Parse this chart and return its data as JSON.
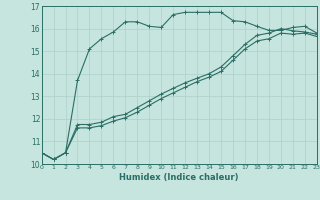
{
  "xlabel": "Humidex (Indice chaleur)",
  "xlim": [
    0,
    23
  ],
  "ylim": [
    10,
    17
  ],
  "yticks": [
    10,
    11,
    12,
    13,
    14,
    15,
    16,
    17
  ],
  "xticks": [
    0,
    1,
    2,
    3,
    4,
    5,
    6,
    7,
    8,
    9,
    10,
    11,
    12,
    13,
    14,
    15,
    16,
    17,
    18,
    19,
    20,
    21,
    22,
    23
  ],
  "line_color": "#2a6e65",
  "bg_color": "#c5e5de",
  "grid_color_major": "#aed0c8",
  "grid_color_minor": "#bdddd6",
  "series": [
    {
      "x": [
        0,
        1,
        2,
        3,
        4,
        5,
        6,
        7,
        8,
        9,
        10,
        11,
        12,
        13,
        14,
        15,
        16,
        17,
        18,
        19,
        20,
        21,
        22,
        23
      ],
      "y": [
        10.5,
        10.2,
        10.5,
        13.7,
        15.1,
        15.55,
        15.85,
        16.3,
        16.3,
        16.1,
        16.05,
        16.62,
        16.72,
        16.72,
        16.72,
        16.72,
        16.35,
        16.3,
        16.1,
        15.92,
        15.92,
        16.05,
        16.1,
        15.8
      ]
    },
    {
      "x": [
        0,
        1,
        2,
        3,
        4,
        5,
        6,
        7,
        8,
        9,
        10,
        11,
        12,
        13,
        14,
        15,
        16,
        17,
        18,
        19,
        20,
        21,
        22,
        23
      ],
      "y": [
        10.5,
        10.2,
        10.5,
        11.75,
        11.75,
        11.85,
        12.1,
        12.2,
        12.5,
        12.8,
        13.1,
        13.35,
        13.6,
        13.8,
        14.0,
        14.3,
        14.8,
        15.3,
        15.7,
        15.8,
        16.0,
        15.9,
        15.85,
        15.75
      ]
    },
    {
      "x": [
        0,
        1,
        2,
        3,
        4,
        5,
        6,
        7,
        8,
        9,
        10,
        11,
        12,
        13,
        14,
        15,
        16,
        17,
        18,
        19,
        20,
        21,
        22,
        23
      ],
      "y": [
        10.5,
        10.2,
        10.5,
        11.6,
        11.6,
        11.7,
        11.9,
        12.05,
        12.3,
        12.6,
        12.9,
        13.15,
        13.4,
        13.65,
        13.85,
        14.1,
        14.6,
        15.1,
        15.45,
        15.55,
        15.8,
        15.75,
        15.8,
        15.65
      ]
    }
  ]
}
